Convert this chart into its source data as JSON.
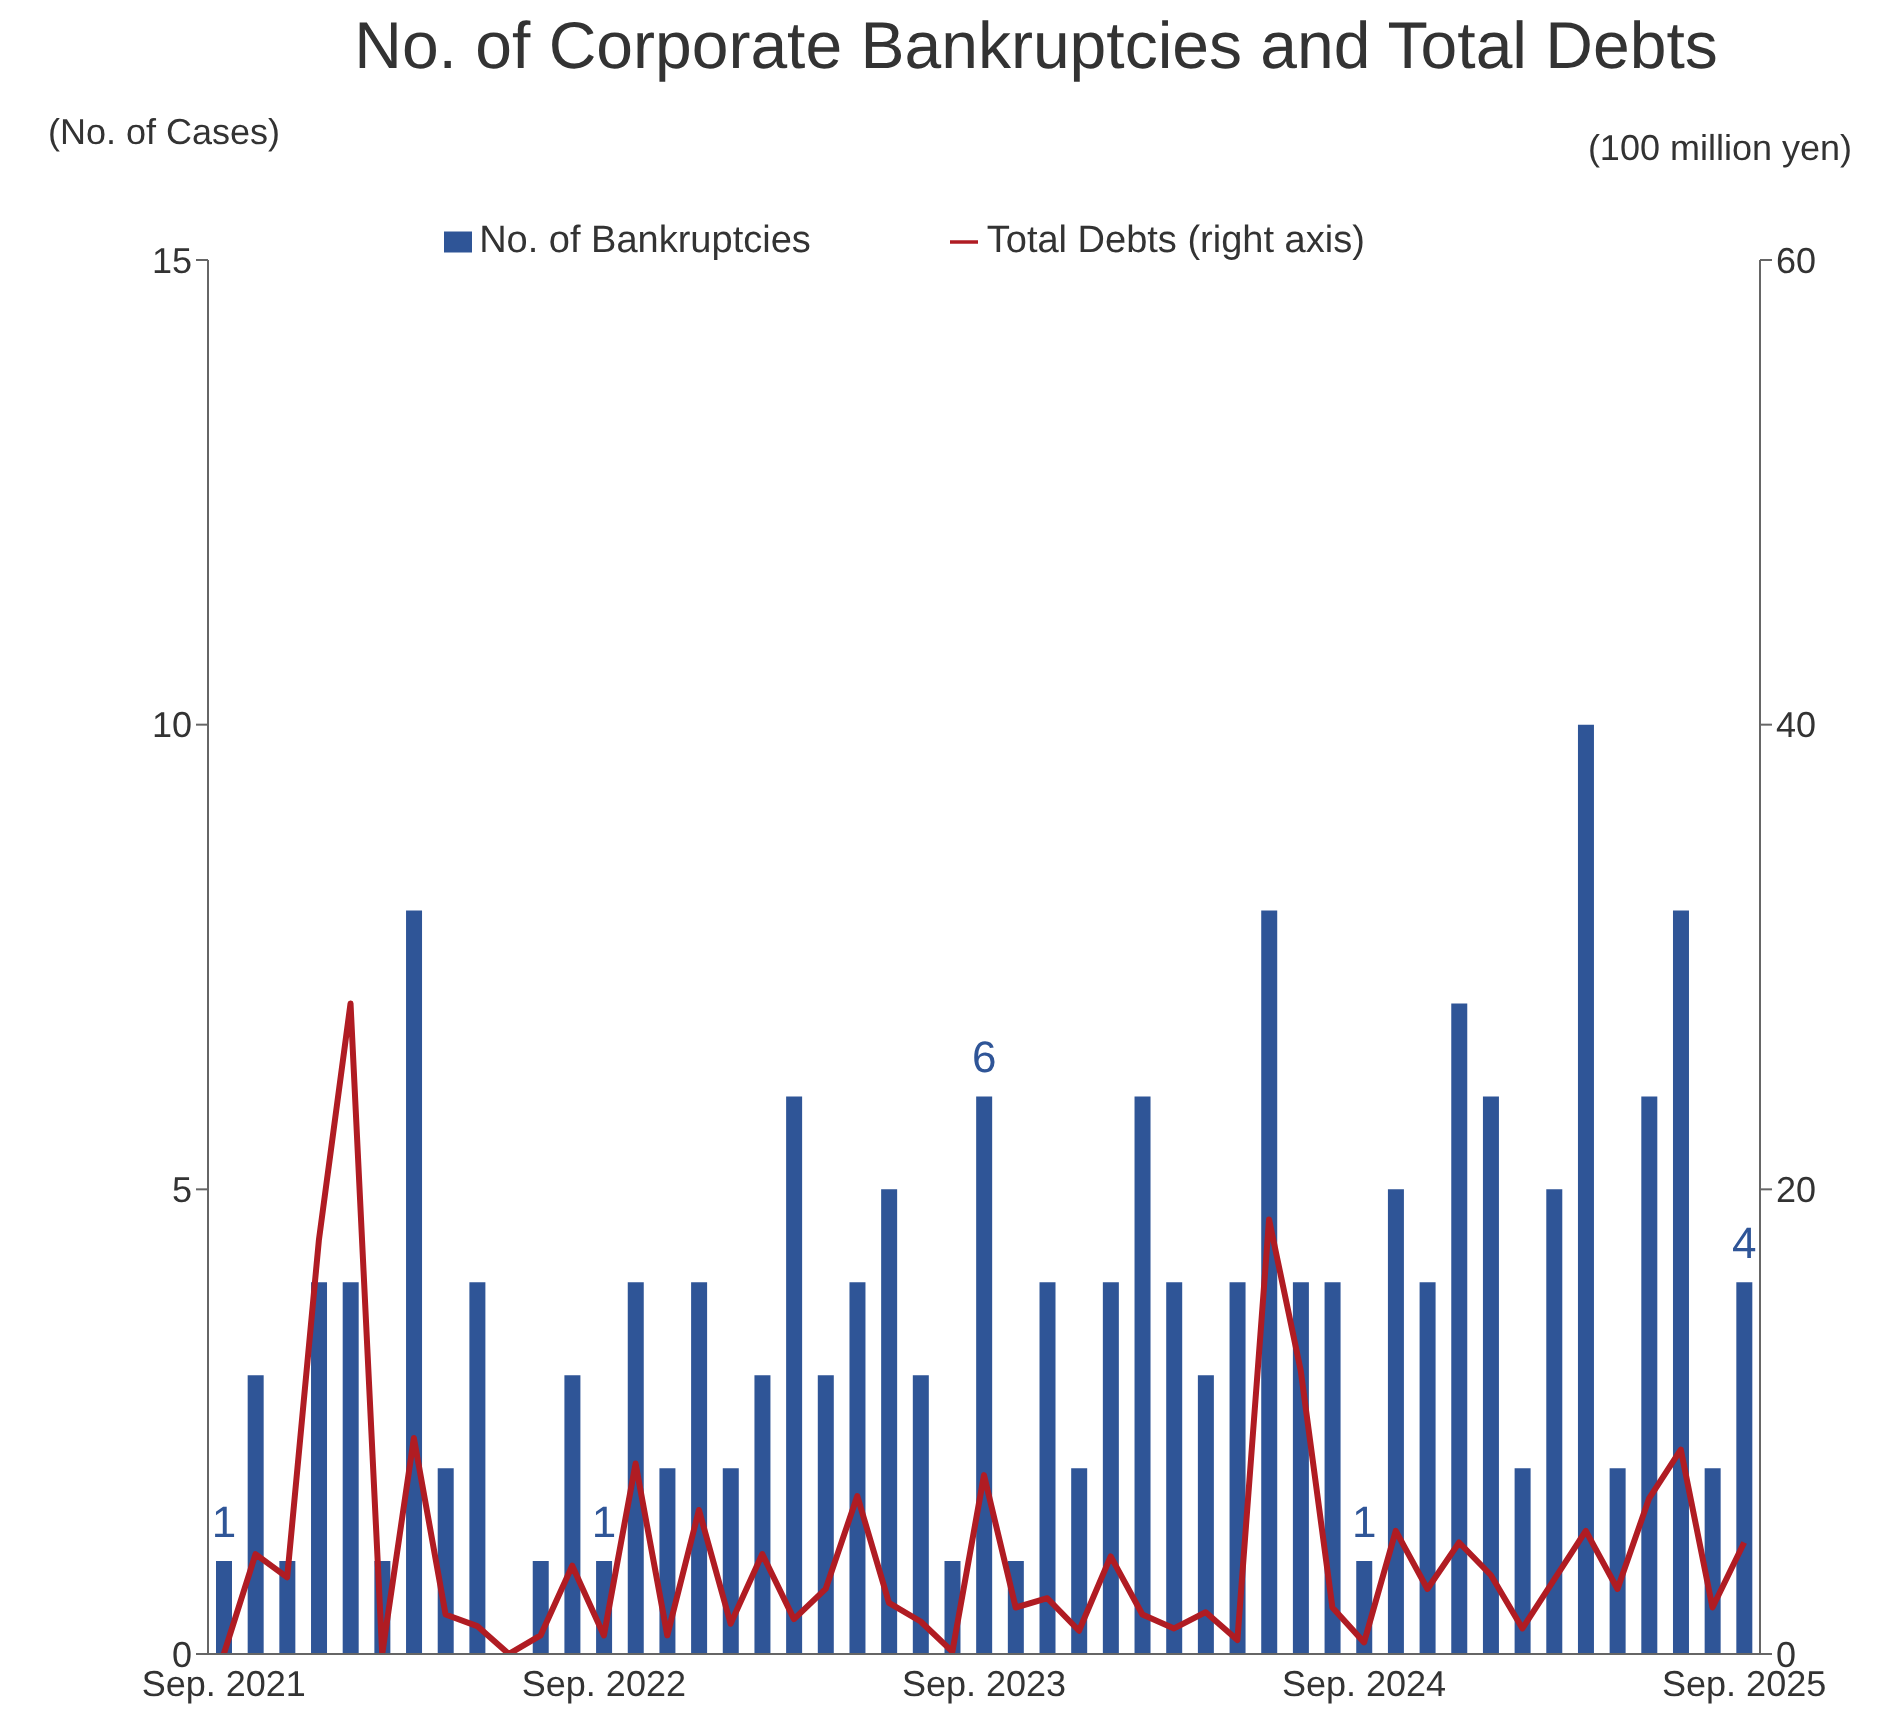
{
  "chart_data": {
    "type": "bar",
    "title": "No. of Corporate Bankruptcies and Total Debts",
    "ylabel": "(No. of Cases)",
    "y2label": "(100 million yen)",
    "categories": [
      "Sep. 2021",
      null,
      null,
      null,
      null,
      null,
      null,
      null,
      null,
      null,
      null,
      null,
      "Sep. 2022",
      null,
      null,
      null,
      null,
      null,
      null,
      null,
      null,
      null,
      null,
      null,
      "Sep. 2023",
      null,
      null,
      null,
      null,
      null,
      null,
      null,
      null,
      null,
      null,
      null,
      "Sep. 2024",
      null,
      null,
      null,
      null,
      null,
      null,
      null,
      null,
      null,
      null,
      null,
      "Sep. 2025"
    ],
    "series": [
      {
        "name": "No. of Bankruptcies",
        "color": "#2f5597",
        "values": [
          1,
          3,
          1,
          4,
          4,
          1,
          8,
          2,
          4,
          0,
          1,
          3,
          1,
          4,
          2,
          4,
          2,
          3,
          6,
          3,
          4,
          5,
          3,
          1,
          6,
          1,
          4,
          2,
          4,
          6,
          4,
          3,
          4,
          8,
          4,
          4,
          1,
          5,
          4,
          7,
          6,
          2,
          5,
          10,
          2,
          6,
          8,
          2,
          4
        ],
        "value_labels": [
          "1",
          null,
          null,
          null,
          null,
          null,
          null,
          null,
          null,
          null,
          null,
          null,
          "1",
          null,
          null,
          null,
          null,
          null,
          null,
          null,
          null,
          null,
          null,
          null,
          "6",
          null,
          null,
          null,
          null,
          null,
          null,
          null,
          null,
          null,
          null,
          null,
          "1",
          null,
          null,
          null,
          null,
          null,
          null,
          null,
          null,
          null,
          null,
          null,
          "4"
        ]
      },
      {
        "name": "Total Debts (right axis)",
        "type": "line",
        "axis": "y2",
        "color": "#b01c23",
        "values": [
          0,
          4.3,
          3.3,
          17.8,
          28,
          0,
          9.3,
          1.7,
          1.2,
          0,
          0.8,
          3.8,
          0.8,
          8.2,
          0.8,
          6.2,
          1.3,
          4.3,
          1.5,
          2.8,
          6.8,
          2.2,
          1.4,
          0.1,
          7.7,
          2.0,
          2.4,
          1.0,
          4.2,
          1.7,
          1.1,
          1.8,
          0.6,
          18.7,
          12.2,
          2.0,
          0.5,
          5.3,
          2.8,
          4.8,
          3.4,
          1.1,
          3.2,
          5.3,
          2.8,
          6.7,
          8.8,
          2.0,
          4.8
        ]
      }
    ],
    "ylim": [
      0,
      15
    ],
    "yticks": [
      0,
      5,
      10,
      15
    ],
    "y2lim": [
      0,
      60
    ],
    "y2ticks": [
      0,
      20,
      40,
      60
    ],
    "grid": false,
    "legend": "top",
    "marker": "none",
    "line_style": "solid"
  }
}
